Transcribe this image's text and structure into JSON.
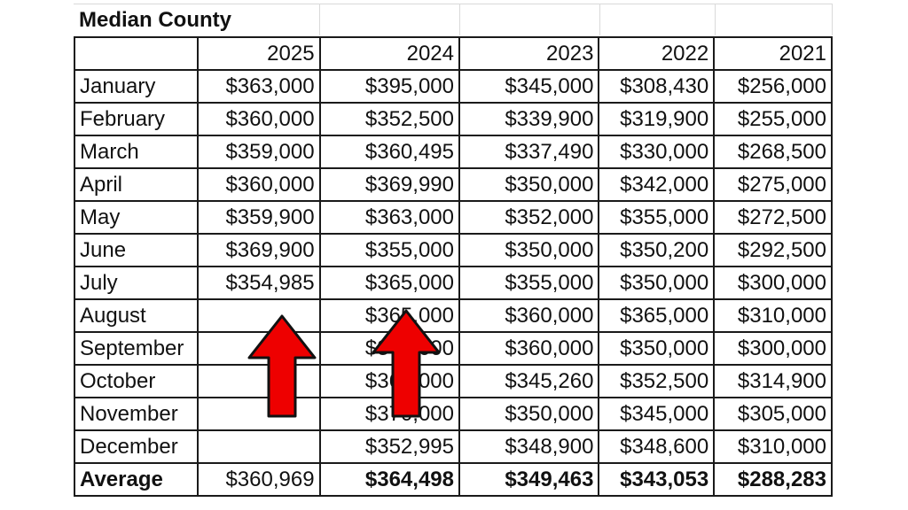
{
  "chart_data": {
    "type": "table",
    "title": "Median County",
    "columns": [
      "2025",
      "2024",
      "2023",
      "2022",
      "2021"
    ],
    "rows": [
      {
        "month": "January",
        "values": [
          "$363,000",
          "$395,000",
          "$345,000",
          "$308,430",
          "$256,000"
        ]
      },
      {
        "month": "February",
        "values": [
          "$360,000",
          "$352,500",
          "$339,900",
          "$319,900",
          "$255,000"
        ]
      },
      {
        "month": "March",
        "values": [
          "$359,000",
          "$360,495",
          "$337,490",
          "$330,000",
          "$268,500"
        ]
      },
      {
        "month": "April",
        "values": [
          "$360,000",
          "$369,990",
          "$350,000",
          "$342,000",
          "$275,000"
        ]
      },
      {
        "month": "May",
        "values": [
          "$359,900",
          "$363,000",
          "$352,000",
          "$355,000",
          "$272,500"
        ]
      },
      {
        "month": "June",
        "values": [
          "$369,900",
          "$355,000",
          "$350,000",
          "$350,200",
          "$292,500"
        ]
      },
      {
        "month": "July",
        "values": [
          "$354,985",
          "$365,000",
          "$355,000",
          "$350,000",
          "$300,000"
        ]
      },
      {
        "month": "August",
        "values": [
          "",
          "$365,000",
          "$360,000",
          "$365,000",
          "$310,000"
        ]
      },
      {
        "month": "September",
        "values": [
          "",
          "$360,000",
          "$360,000",
          "$350,000",
          "$300,000"
        ]
      },
      {
        "month": "October",
        "values": [
          "",
          "$365,000",
          "$345,260",
          "$352,500",
          "$314,900"
        ]
      },
      {
        "month": "November",
        "values": [
          "",
          "$370,000",
          "$350,000",
          "$345,000",
          "$305,000"
        ]
      },
      {
        "month": "December",
        "values": [
          "",
          "$352,995",
          "$348,900",
          "$348,600",
          "$310,000"
        ]
      }
    ],
    "average": {
      "label": "Average",
      "values": [
        "$360,969",
        "$364,498",
        "$349,463",
        "$343,053",
        "$288,283"
      ]
    },
    "arrow_color": "#ee0000"
  }
}
